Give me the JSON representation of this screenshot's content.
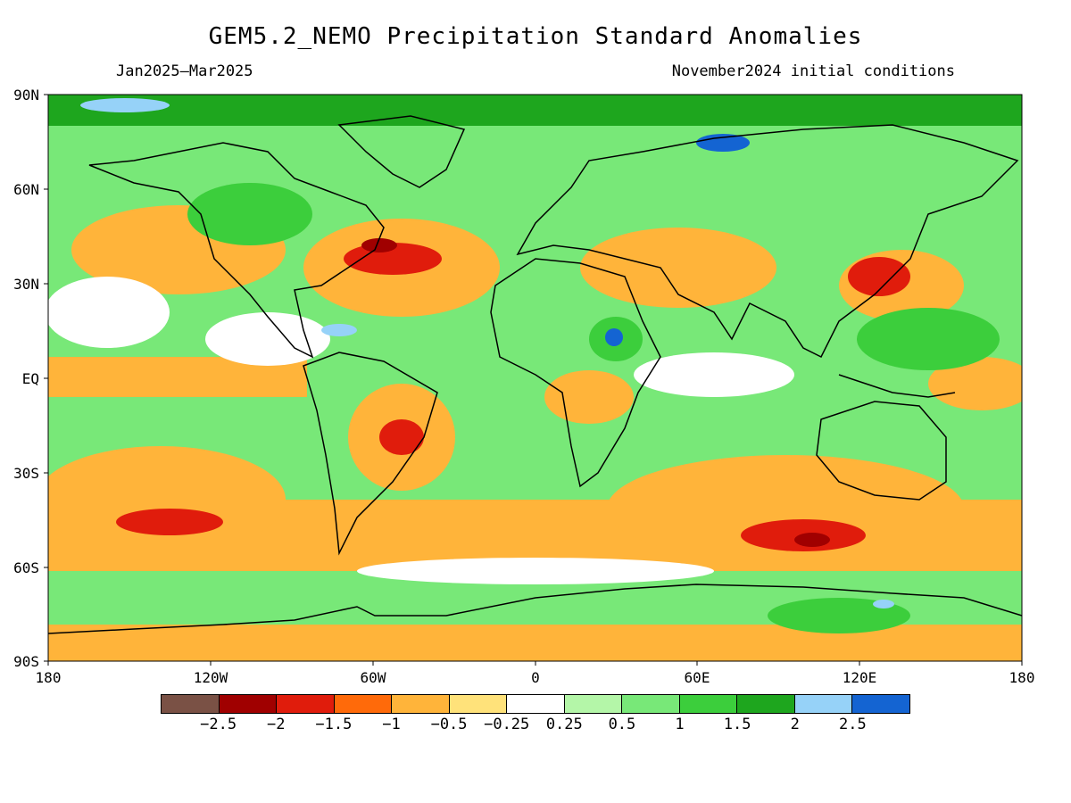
{
  "title": "GEM5.2_NEMO Precipitation Standard Anomalies",
  "period": "Jan2025–Mar2025",
  "init": "November2024 initial conditions",
  "lat_labels": [
    "90N",
    "60N",
    "30N",
    "EQ",
    "30S",
    "60S",
    "90S"
  ],
  "lon_labels": [
    "180",
    "120W",
    "60W",
    "0",
    "60E",
    "120E",
    "180"
  ],
  "colorbar": {
    "colors": [
      "#7a5145",
      "#a00000",
      "#e01c0c",
      "#ff6a0a",
      "#ffb43a",
      "#ffe27a",
      "#ffffff",
      "#b4f6a8",
      "#78e878",
      "#3cce3c",
      "#1ea61e",
      "#96d2f8",
      "#1464d2"
    ],
    "labels": [
      "−2.5",
      "−2",
      "−1.5",
      "−1",
      "−0.5",
      "−0.25",
      "0.25",
      "0.5",
      "1",
      "1.5",
      "2",
      "2.5"
    ]
  },
  "map_colors": {
    "ocean_dry": "#ffb43a",
    "wet": "#3cce3c",
    "very_wet": "#1ea61e",
    "light_wet": "#78e878",
    "neutral": "#ffffff",
    "strong_dry": "#e01c0c",
    "extreme_dry": "#a00000",
    "ice_wet": "#96d2f8",
    "coast": "#000000"
  }
}
